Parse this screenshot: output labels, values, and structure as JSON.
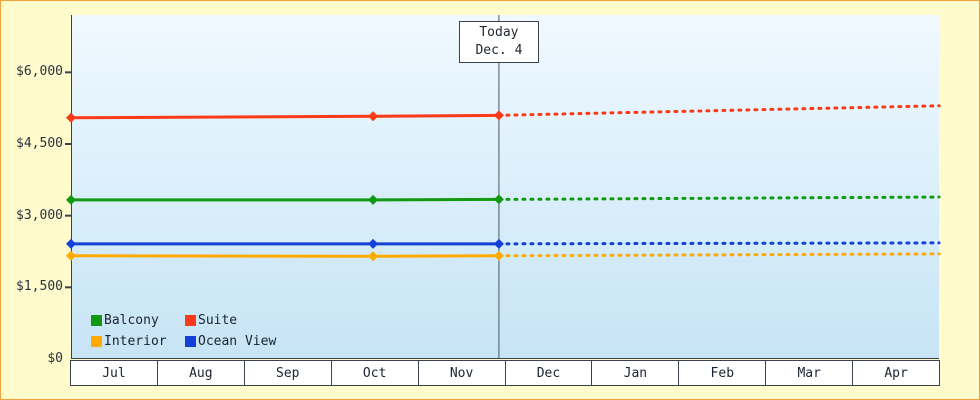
{
  "page": {
    "background_color": "#fffbcc",
    "border_color": "#f2a33c"
  },
  "chart_data": {
    "type": "line",
    "title": "",
    "x_axis": {
      "tick_labels": [
        "Jul",
        "Aug",
        "Sep",
        "Oct",
        "Nov",
        "Dec",
        "Jan",
        "Feb",
        "Mar",
        "Apr"
      ],
      "domain_months": [
        0,
        10
      ]
    },
    "y_axis": {
      "tick_values": [
        0,
        1500,
        3000,
        4500,
        6000
      ],
      "tick_labels": [
        "$0",
        "$1,500",
        "$3,000",
        "$4,500",
        "$6,000"
      ],
      "range": [
        0,
        7200
      ],
      "unit": "USD"
    },
    "grid": "off",
    "legend_position": "bottom-left",
    "today_marker": {
      "x": 4.93,
      "label": [
        "Today",
        "Dec. 4"
      ]
    },
    "legend": [
      {
        "label": "Balcony",
        "color": "#119a11"
      },
      {
        "label": "Suite",
        "color": "#fb3a1a"
      },
      {
        "label": "Interior",
        "color": "#ffaa00"
      },
      {
        "label": "Ocean View",
        "color": "#1340d8"
      }
    ],
    "series": [
      {
        "name": "Suite",
        "color": "#fb3a1a",
        "solid": [
          [
            0,
            5050
          ],
          [
            3.48,
            5080
          ],
          [
            4.93,
            5100
          ]
        ],
        "projected": [
          [
            4.93,
            5100
          ],
          [
            10,
            5300
          ]
        ],
        "markers": [
          [
            0,
            5050
          ],
          [
            3.48,
            5080
          ],
          [
            4.93,
            5100
          ]
        ]
      },
      {
        "name": "Balcony",
        "color": "#119a11",
        "solid": [
          [
            0,
            3330
          ],
          [
            3.48,
            3330
          ],
          [
            4.93,
            3340
          ]
        ],
        "projected": [
          [
            4.93,
            3340
          ],
          [
            10,
            3390
          ]
        ],
        "markers": [
          [
            0,
            3330
          ],
          [
            3.48,
            3330
          ],
          [
            4.93,
            3340
          ]
        ]
      },
      {
        "name": "Ocean View",
        "color": "#1340d8",
        "solid": [
          [
            0,
            2410
          ],
          [
            3.48,
            2410
          ],
          [
            4.93,
            2410
          ]
        ],
        "projected": [
          [
            4.93,
            2410
          ],
          [
            10,
            2430
          ]
        ],
        "markers": [
          [
            0,
            2410
          ],
          [
            3.48,
            2410
          ],
          [
            4.93,
            2410
          ]
        ]
      },
      {
        "name": "Interior",
        "color": "#ffaa00",
        "solid": [
          [
            0,
            2160
          ],
          [
            3.48,
            2150
          ],
          [
            4.93,
            2160
          ]
        ],
        "projected": [
          [
            4.93,
            2160
          ],
          [
            10,
            2200
          ]
        ],
        "markers": [
          [
            0,
            2160
          ],
          [
            3.48,
            2150
          ],
          [
            4.93,
            2160
          ]
        ]
      }
    ]
  }
}
